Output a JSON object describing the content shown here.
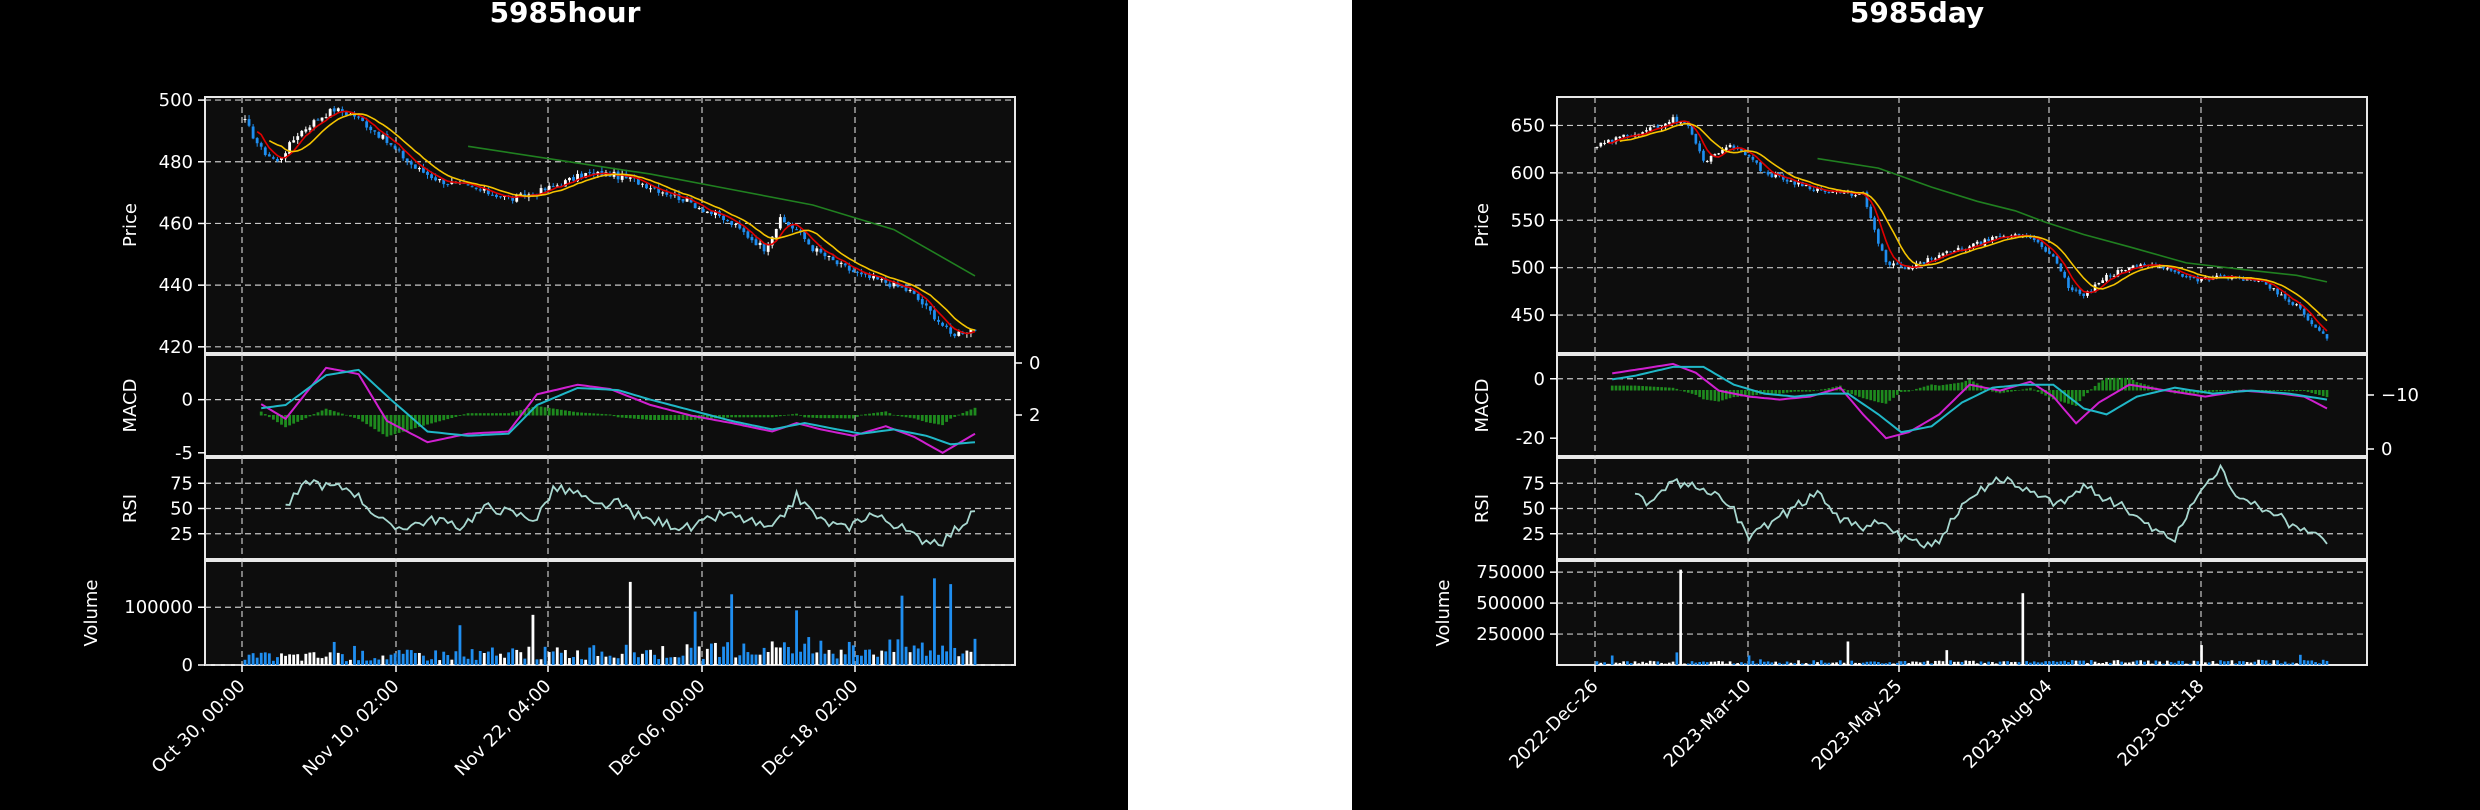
{
  "colors": {
    "figure_bg": "#000000",
    "axes_bg": "#0d0d0d",
    "grid": "#c8c8c8",
    "up_candle": "#ffffff",
    "down_candle": "#1f8ef0",
    "ma_fast": "#e00000",
    "ma_mid": "#f5c400",
    "ma_slow": "#208020",
    "macd_line": "#d020d0",
    "signal_line": "#20b8c8",
    "hist": "#1e8a1e",
    "rsi": "#a8d8d0"
  },
  "chart_data": [
    {
      "type": "candlestick",
      "title": "5985hour",
      "xticks": [
        "Oct 30, 00:00",
        "Nov 10, 02:00",
        "Nov 22, 04:00",
        "Dec 06, 00:00",
        "Dec 18, 02:00"
      ],
      "price": {
        "ylabel": "Price",
        "yticks": [
          420,
          440,
          460,
          480,
          500
        ],
        "ylim": [
          418,
          501
        ],
        "close_path": [
          [
            0,
            493
          ],
          [
            4,
            484
          ],
          [
            8,
            480
          ],
          [
            13,
            489
          ],
          [
            18,
            494
          ],
          [
            22,
            497
          ],
          [
            27,
            495
          ],
          [
            32,
            490
          ],
          [
            37,
            484
          ],
          [
            42,
            478
          ],
          [
            48,
            474
          ],
          [
            54,
            472
          ],
          [
            60,
            470
          ],
          [
            66,
            468
          ],
          [
            72,
            470
          ],
          [
            78,
            473
          ],
          [
            84,
            476
          ],
          [
            90,
            476
          ],
          [
            96,
            474
          ],
          [
            102,
            471
          ],
          [
            108,
            468
          ],
          [
            114,
            464
          ],
          [
            120,
            460
          ],
          [
            124,
            456
          ],
          [
            128,
            452
          ],
          [
            132,
            461
          ],
          [
            136,
            458
          ],
          [
            140,
            452
          ],
          [
            146,
            447
          ],
          [
            152,
            443
          ],
          [
            158,
            441
          ],
          [
            164,
            438
          ],
          [
            170,
            430
          ],
          [
            174,
            424
          ],
          [
            177,
            425
          ],
          [
            180,
            426
          ]
        ],
        "ma_slow_path": [
          [
            55,
            485
          ],
          [
            80,
            480
          ],
          [
            100,
            476
          ],
          [
            120,
            471
          ],
          [
            140,
            466
          ],
          [
            160,
            458
          ],
          [
            180,
            443
          ]
        ]
      },
      "macd": {
        "ylabel": "MACD",
        "yticks_left": [
          -5,
          0
        ],
        "yticks_right": [
          0,
          2
        ],
        "ylim": [
          -5.3,
          4.2
        ],
        "macd_path": [
          [
            0,
            0.5
          ],
          [
            10,
            -1.8
          ],
          [
            20,
            3.0
          ],
          [
            28,
            2.4
          ],
          [
            35,
            -2.0
          ],
          [
            45,
            -4.0
          ],
          [
            55,
            -3.2
          ],
          [
            65,
            -3.0
          ],
          [
            72,
            0.5
          ],
          [
            82,
            1.4
          ],
          [
            90,
            1.0
          ],
          [
            100,
            -0.5
          ],
          [
            110,
            -1.5
          ],
          [
            120,
            -2.2
          ],
          [
            130,
            -3.0
          ],
          [
            136,
            -2.2
          ],
          [
            142,
            -2.8
          ],
          [
            150,
            -3.4
          ],
          [
            158,
            -2.5
          ],
          [
            165,
            -3.5
          ],
          [
            172,
            -5.0
          ],
          [
            180,
            -3.2
          ]
        ],
        "signal_path": [
          [
            0,
            -1.0
          ],
          [
            10,
            -0.5
          ],
          [
            20,
            2.3
          ],
          [
            28,
            2.8
          ],
          [
            36,
            0.0
          ],
          [
            45,
            -3.0
          ],
          [
            55,
            -3.4
          ],
          [
            65,
            -3.2
          ],
          [
            72,
            -0.5
          ],
          [
            82,
            1.1
          ],
          [
            92,
            0.9
          ],
          [
            100,
            0.0
          ],
          [
            110,
            -1.0
          ],
          [
            120,
            -2.0
          ],
          [
            130,
            -2.8
          ],
          [
            138,
            -2.2
          ],
          [
            146,
            -2.8
          ],
          [
            152,
            -3.2
          ],
          [
            160,
            -2.8
          ],
          [
            168,
            -3.4
          ],
          [
            174,
            -4.2
          ],
          [
            180,
            -4.0
          ]
        ]
      },
      "rsi": {
        "ylabel": "RSI",
        "yticks": [
          25,
          50,
          75
        ],
        "ylim": [
          0,
          100
        ],
        "path": [
          [
            10,
            52
          ],
          [
            16,
            78
          ],
          [
            20,
            72
          ],
          [
            26,
            70
          ],
          [
            32,
            45
          ],
          [
            36,
            30
          ],
          [
            42,
            35
          ],
          [
            48,
            40
          ],
          [
            52,
            30
          ],
          [
            60,
            52
          ],
          [
            66,
            45
          ],
          [
            72,
            40
          ],
          [
            76,
            70
          ],
          [
            82,
            65
          ],
          [
            86,
            52
          ],
          [
            92,
            55
          ],
          [
            98,
            40
          ],
          [
            104,
            35
          ],
          [
            110,
            30
          ],
          [
            118,
            45
          ],
          [
            124,
            38
          ],
          [
            130,
            28
          ],
          [
            136,
            62
          ],
          [
            142,
            38
          ],
          [
            148,
            30
          ],
          [
            154,
            45
          ],
          [
            160,
            35
          ],
          [
            166,
            20
          ],
          [
            172,
            18
          ],
          [
            180,
            46
          ]
        ]
      },
      "volume": {
        "ylabel": "Volume",
        "yticks": [
          0,
          100000
        ],
        "ylim": [
          0,
          180000
        ]
      }
    },
    {
      "type": "candlestick",
      "title": "5985day",
      "xticks": [
        "2022-Dec-26",
        "2023-Mar-10",
        "2023-May-25",
        "2023-Aug-04",
        "2023-Oct-18"
      ],
      "price": {
        "ylabel": "Price",
        "yticks": [
          450,
          500,
          550,
          600,
          650
        ],
        "ylim": [
          410,
          680
        ],
        "close_path": [
          [
            0,
            628
          ],
          [
            8,
            640
          ],
          [
            16,
            648
          ],
          [
            20,
            657
          ],
          [
            24,
            650
          ],
          [
            28,
            612
          ],
          [
            34,
            628
          ],
          [
            38,
            625
          ],
          [
            44,
            600
          ],
          [
            52,
            590
          ],
          [
            60,
            580
          ],
          [
            66,
            578
          ],
          [
            70,
            578
          ],
          [
            72,
            550
          ],
          [
            76,
            505
          ],
          [
            82,
            498
          ],
          [
            88,
            510
          ],
          [
            96,
            520
          ],
          [
            104,
            530
          ],
          [
            112,
            535
          ],
          [
            116,
            528
          ],
          [
            120,
            510
          ],
          [
            124,
            480
          ],
          [
            128,
            470
          ],
          [
            134,
            490
          ],
          [
            140,
            500
          ],
          [
            146,
            505
          ],
          [
            152,
            495
          ],
          [
            158,
            488
          ],
          [
            164,
            490
          ],
          [
            170,
            488
          ],
          [
            176,
            482
          ],
          [
            180,
            470
          ],
          [
            184,
            460
          ],
          [
            188,
            440
          ],
          [
            192,
            425
          ]
        ],
        "ma_slow_path": [
          [
            58,
            615
          ],
          [
            74,
            605
          ],
          [
            88,
            585
          ],
          [
            100,
            570
          ],
          [
            110,
            560
          ],
          [
            118,
            548
          ],
          [
            128,
            535
          ],
          [
            140,
            522
          ],
          [
            155,
            505
          ],
          [
            170,
            498
          ],
          [
            184,
            492
          ],
          [
            192,
            485
          ]
        ]
      },
      "macd": {
        "ylabel": "MACD",
        "yticks_left": [
          -20,
          0
        ],
        "yticks_right": [
          -10,
          0
        ],
        "ylim": [
          -26,
          8
        ],
        "macd_path": [
          [
            0,
            1
          ],
          [
            10,
            3
          ],
          [
            20,
            5
          ],
          [
            26,
            2
          ],
          [
            32,
            -4
          ],
          [
            40,
            -6
          ],
          [
            48,
            -7
          ],
          [
            56,
            -6
          ],
          [
            64,
            -3
          ],
          [
            70,
            -12
          ],
          [
            76,
            -20
          ],
          [
            82,
            -18
          ],
          [
            90,
            -12
          ],
          [
            98,
            -2
          ],
          [
            106,
            -4
          ],
          [
            114,
            -1
          ],
          [
            120,
            -6
          ],
          [
            126,
            -15
          ],
          [
            132,
            -8
          ],
          [
            140,
            -2
          ],
          [
            150,
            -4
          ],
          [
            160,
            -6
          ],
          [
            170,
            -4
          ],
          [
            180,
            -5
          ],
          [
            186,
            -6
          ],
          [
            192,
            -10
          ]
        ],
        "signal_path": [
          [
            0,
            -1
          ],
          [
            10,
            1
          ],
          [
            20,
            4
          ],
          [
            28,
            4
          ],
          [
            36,
            -2
          ],
          [
            44,
            -5
          ],
          [
            52,
            -6
          ],
          [
            60,
            -5
          ],
          [
            66,
            -5
          ],
          [
            74,
            -12
          ],
          [
            80,
            -18
          ],
          [
            88,
            -16
          ],
          [
            96,
            -8
          ],
          [
            104,
            -3
          ],
          [
            112,
            -2
          ],
          [
            120,
            -2
          ],
          [
            128,
            -10
          ],
          [
            134,
            -12
          ],
          [
            142,
            -6
          ],
          [
            152,
            -3
          ],
          [
            162,
            -5
          ],
          [
            172,
            -4
          ],
          [
            182,
            -5
          ],
          [
            192,
            -7
          ]
        ]
      },
      "rsi": {
        "ylabel": "RSI",
        "yticks": [
          25,
          50,
          75
        ],
        "ylim": [
          0,
          100
        ],
        "path": [
          [
            10,
            62
          ],
          [
            14,
            55
          ],
          [
            20,
            75
          ],
          [
            26,
            70
          ],
          [
            32,
            65
          ],
          [
            36,
            48
          ],
          [
            40,
            20
          ],
          [
            46,
            38
          ],
          [
            52,
            50
          ],
          [
            58,
            68
          ],
          [
            64,
            40
          ],
          [
            70,
            33
          ],
          [
            76,
            35
          ],
          [
            80,
            20
          ],
          [
            84,
            15
          ],
          [
            90,
            15
          ],
          [
            96,
            55
          ],
          [
            102,
            72
          ],
          [
            108,
            80
          ],
          [
            116,
            62
          ],
          [
            122,
            55
          ],
          [
            128,
            72
          ],
          [
            134,
            60
          ],
          [
            140,
            48
          ],
          [
            146,
            30
          ],
          [
            152,
            20
          ],
          [
            158,
            65
          ],
          [
            164,
            90
          ],
          [
            170,
            55
          ],
          [
            176,
            50
          ],
          [
            182,
            35
          ],
          [
            186,
            28
          ],
          [
            192,
            18
          ]
        ]
      },
      "volume": {
        "ylabel": "Volume",
        "yticks": [
          250000,
          500000,
          750000
        ],
        "ylim": [
          0,
          840000
        ]
      }
    }
  ]
}
